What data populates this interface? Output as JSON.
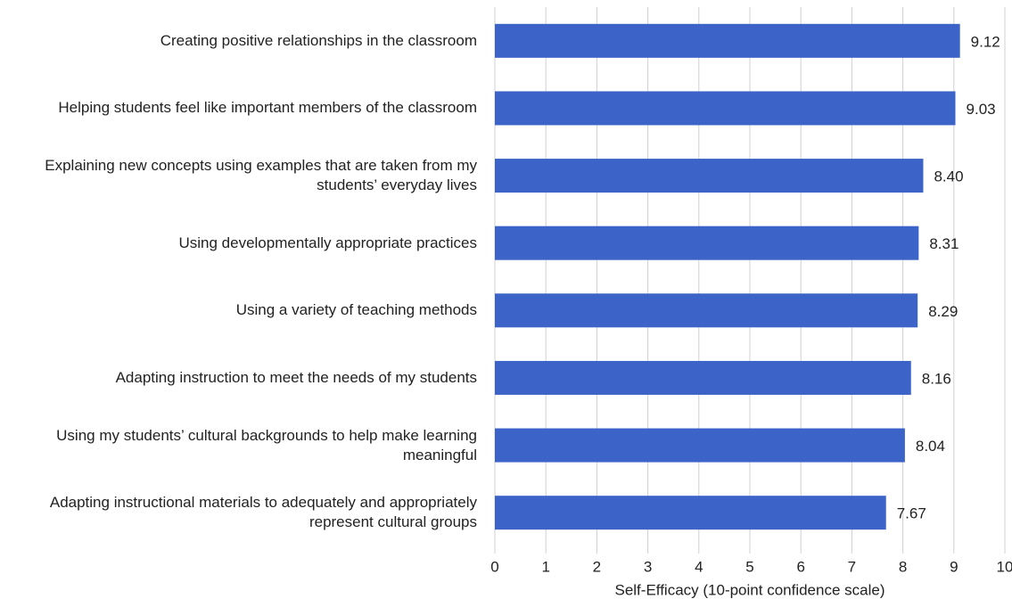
{
  "chart_data": {
    "type": "bar",
    "orientation": "horizontal",
    "categories": [
      "Creating positive relationships in the classroom",
      "Helping students feel like important members of the classroom",
      "Explaining new concepts using examples that are taken from my students’ everyday lives",
      "Using developmentally appropriate practices",
      "Using a variety of teaching methods",
      "Adapting instruction to meet the needs of my students",
      "Using my students’ cultural backgrounds to help make learning meaningful",
      "Adapting instructional materials to adequately and appropriately represent cultural groups"
    ],
    "values": [
      9.12,
      9.03,
      8.4,
      8.31,
      8.29,
      8.16,
      8.04,
      7.67
    ],
    "value_labels": [
      "9.12",
      "9.03",
      "8.40",
      "8.31",
      "8.29",
      "8.16",
      "8.04",
      "7.67"
    ],
    "color": "#3c64c8",
    "xlabel": "Self-Efficacy (10-point confidence scale)",
    "xlim": [
      0,
      10
    ],
    "xticks": [
      0,
      1,
      2,
      3,
      4,
      5,
      6,
      7,
      8,
      9,
      10
    ],
    "grid": true
  }
}
